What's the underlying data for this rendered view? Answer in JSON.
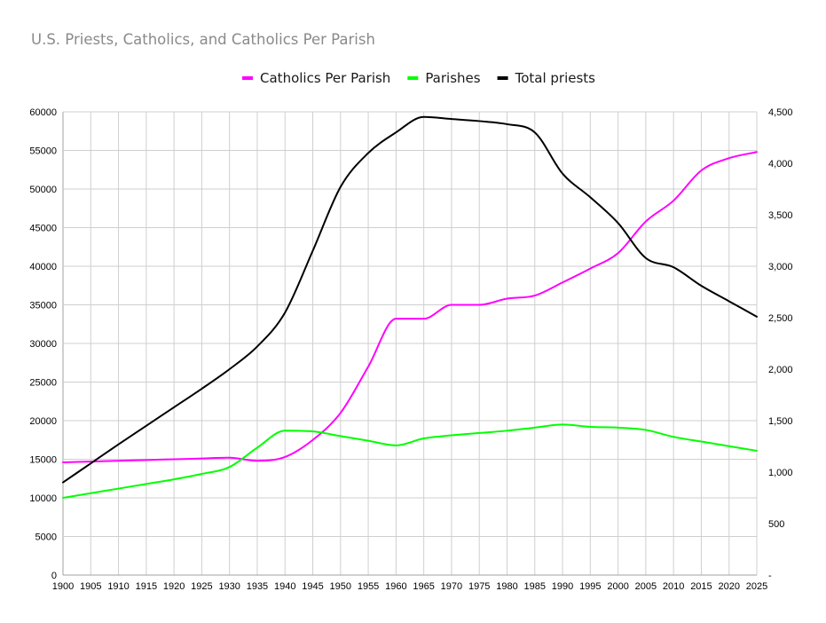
{
  "chart_data": {
    "type": "line",
    "title": "U.S. Priests, Catholics, and Catholics Per Parish",
    "legend_position": "top",
    "grid": true,
    "x": [
      1900,
      1905,
      1910,
      1915,
      1920,
      1925,
      1930,
      1935,
      1940,
      1945,
      1950,
      1955,
      1960,
      1965,
      1970,
      1975,
      1980,
      1985,
      1990,
      1995,
      2000,
      2005,
      2010,
      2015,
      2020,
      2025
    ],
    "x_ticks": [
      "1900",
      "1905",
      "1910",
      "1915",
      "1920",
      "1925",
      "1930",
      "1935",
      "1940",
      "1945",
      "1950",
      "1955",
      "1960",
      "1965",
      "1970",
      "1975",
      "1980",
      "1985",
      "1990",
      "1995",
      "2000",
      "2005",
      "2010",
      "2015",
      "2020",
      "2025"
    ],
    "y_left": {
      "min": 0,
      "max": 60000,
      "step": 5000,
      "ticks": [
        "0",
        "5000",
        "10000",
        "15000",
        "20000",
        "25000",
        "30000",
        "35000",
        "40000",
        "45000",
        "50000",
        "55000",
        "60000"
      ]
    },
    "y_right": {
      "min": 0,
      "max": 4500,
      "step": 500,
      "ticks": [
        "-",
        "500",
        "1,000",
        "1,500",
        "2,000",
        "2,500",
        "3,000",
        "3,500",
        "4,000",
        "4,500"
      ]
    },
    "series": [
      {
        "name": "Catholics Per Parish",
        "color": "#ff00ff",
        "axis": "left",
        "values": [
          14600,
          14700,
          14800,
          14900,
          15000,
          15100,
          15200,
          14800,
          15300,
          17500,
          21000,
          27000,
          33200,
          33200,
          35000,
          35000,
          35800,
          36200,
          37900,
          39700,
          41700,
          45800,
          48500,
          52400,
          54000,
          54800
        ]
      },
      {
        "name": "Parishes",
        "color": "#00ff00",
        "axis": "left",
        "values": [
          10000,
          10600,
          11200,
          11800,
          12400,
          13100,
          14000,
          16500,
          18700,
          18600,
          18000,
          17400,
          16800,
          17700,
          18100,
          18400,
          18700,
          19100,
          19500,
          19200,
          19100,
          18800,
          17900,
          17300,
          16700,
          16100
        ]
      },
      {
        "name": "Total priests",
        "color": "#000000",
        "axis": "right",
        "values": [
          900,
          1085,
          1270,
          1450,
          1630,
          1810,
          2000,
          2220,
          2550,
          3150,
          3770,
          4100,
          4300,
          4450,
          4430,
          4410,
          4380,
          4300,
          3900,
          3670,
          3420,
          3080,
          2990,
          2810,
          2660,
          2510
        ]
      }
    ]
  }
}
